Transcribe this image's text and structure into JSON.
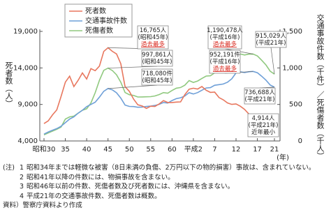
{
  "chart_data": {
    "type": "line",
    "categories": [
      "昭和30",
      null,
      null,
      null,
      null,
      "35",
      null,
      null,
      null,
      null,
      "40",
      null,
      null,
      null,
      null,
      "45",
      null,
      null,
      null,
      null,
      "50",
      null,
      null,
      null,
      null,
      "55",
      null,
      null,
      null,
      null,
      "60",
      null,
      null,
      null,
      null,
      "平成2",
      null,
      null,
      null,
      null,
      "7",
      null,
      null,
      null,
      null,
      "12",
      null,
      null,
      null,
      null,
      "17",
      null,
      null,
      null,
      "21"
    ],
    "x_unit": "(年)",
    "y_label": "死者数（人）",
    "y2_label": "交通事故件数（千件）／死傷者数（千人）",
    "ylim": [
      4000,
      19000
    ],
    "yticks": [
      {
        "value": 4000,
        "label": "4,000"
      },
      {
        "value": 9000,
        "label": "9,000"
      },
      {
        "value": 14000,
        "label": "14,000"
      },
      {
        "value": 19000,
        "label": "19,000"
      }
    ],
    "y2lim": [
      0,
      1500
    ],
    "y2ticks": [
      0,
      500,
      {
        "value": 1000,
        "label": "1,000"
      },
      {
        "value": 1500,
        "label": "1,500"
      }
    ],
    "series": [
      {
        "name": "死者数",
        "color": "#e8775e",
        "values": [
          6379,
          6751,
          7575,
          8248,
          10079,
          12055,
          12865,
          11445,
          12301,
          13318,
          12484,
          13904,
          13618,
          14256,
          16257,
          16765,
          16278,
          15918,
          14574,
          11432,
          10792,
          9734,
          8945,
          8783,
          8466,
          8760,
          8719,
          9073,
          9520,
          9262,
          9261,
          9317,
          9347,
          10344,
          11086,
          11227,
          11105,
          11451,
          10942,
          10649,
          10684,
          9942,
          9640,
          9211,
          9006,
          9073,
          8757,
          8326,
          7702,
          7358,
          6871,
          6352,
          5744,
          5155,
          4914
        ]
      },
      {
        "name": "交通事故件数",
        "color": "#6fa0d8",
        "axis": "y2",
        "values": [
          94,
          123,
          147,
          169,
          201,
          250,
          300,
          330,
          380,
          420,
          470,
          500,
          530,
          600,
          680,
          718.08,
          700,
          659,
          587,
          491,
          473,
          471,
          461,
          464,
          472,
          477,
          486,
          502,
          526,
          519,
          553,
          579,
          591,
          615,
          661,
          643,
          662,
          695,
          725,
          730,
          762,
          771,
          780,
          804,
          850,
          932,
          947,
          937,
          948,
          952.191,
          934,
          887,
          833,
          766,
          736.688
        ]
      },
      {
        "name": "死傷者数",
        "color": "#90c97f",
        "axis": "y2",
        "values": [
          83,
          110,
          135,
          160,
          190,
          300,
          330,
          340,
          380,
          420,
          440,
          520,
          660,
          830,
          967,
          997.861,
          965,
          906,
          804,
          663,
          633,
          623,
          602,
          603,
          605,
          607,
          616,
          635,
          662,
          654,
          691,
          722,
          732,
          763,
          826,
          802,
          821,
          856,
          889,
          892,
          933,
          952,
          968,
          1001,
          1060,
          1167,
          1191,
          1177,
          1189,
          1190.478,
          1164,
          1105,
          1041,
          955,
          915.029
        ]
      }
    ],
    "annotations": [
      {
        "lines": [
          "16,765人",
          "(昭和45年)"
        ],
        "emphasis": "過去最多"
      },
      {
        "lines": [
          "997,861人",
          "(昭和45年)"
        ]
      },
      {
        "lines": [
          "718,080件",
          "(昭和45年)"
        ]
      },
      {
        "lines": [
          "1,190,478人",
          "(平成16年)"
        ],
        "emphasis": "過去最多"
      },
      {
        "lines": [
          "952,191件",
          "(平成16年)"
        ],
        "emphasis": "過去最多"
      },
      {
        "lines": [
          "915,029人",
          "(平成21年)"
        ]
      },
      {
        "lines": [
          "736,688人",
          "(平成21年)"
        ]
      },
      {
        "lines": [
          "4,914人",
          "(平成21年)",
          "近年最小"
        ]
      }
    ]
  },
  "notes": {
    "label": "(注)",
    "items": [
      {
        "num": "1",
        "text": "昭和34年までは軽微な被害（8日未満の負傷、2万円以下の物的損害）事故は、含まれていない。"
      },
      {
        "num": "2",
        "text": "昭和41年以降の件数には、物損事故を含まない。"
      },
      {
        "num": "3",
        "text": "昭和46年以前の件数、死傷者数及び死者数には、沖縄県を含まない。"
      },
      {
        "num": "4",
        "text": "平成21年の交通事故件数、死傷者数は概数。"
      }
    ],
    "source": "資料）警察庁資料より作成"
  }
}
